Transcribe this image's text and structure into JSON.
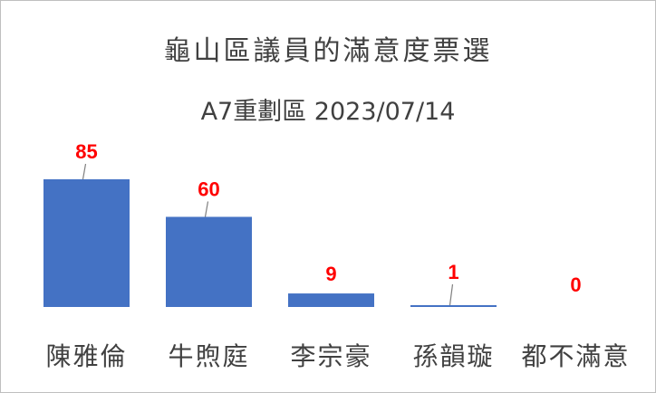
{
  "title_line1": "龜山區議員的滿意度票選",
  "title_line2": "A7重劃區 2023/07/14",
  "chart_data": {
    "type": "bar",
    "title": "龜山區議員的滿意度票選",
    "subtitle": "A7重劃區 2023/07/14",
    "categories": [
      "陳雅倫",
      "牛煦庭",
      "李宗豪",
      "孫韻璇",
      "都不滿意"
    ],
    "values": [
      85,
      60,
      9,
      1,
      0
    ],
    "data_labels": [
      "85",
      "60",
      "9",
      "1",
      "0"
    ],
    "ylim": [
      0,
      85
    ],
    "grid": false,
    "legend": "none",
    "bar_color": "#4472c4",
    "label_color": "#ff0000"
  }
}
